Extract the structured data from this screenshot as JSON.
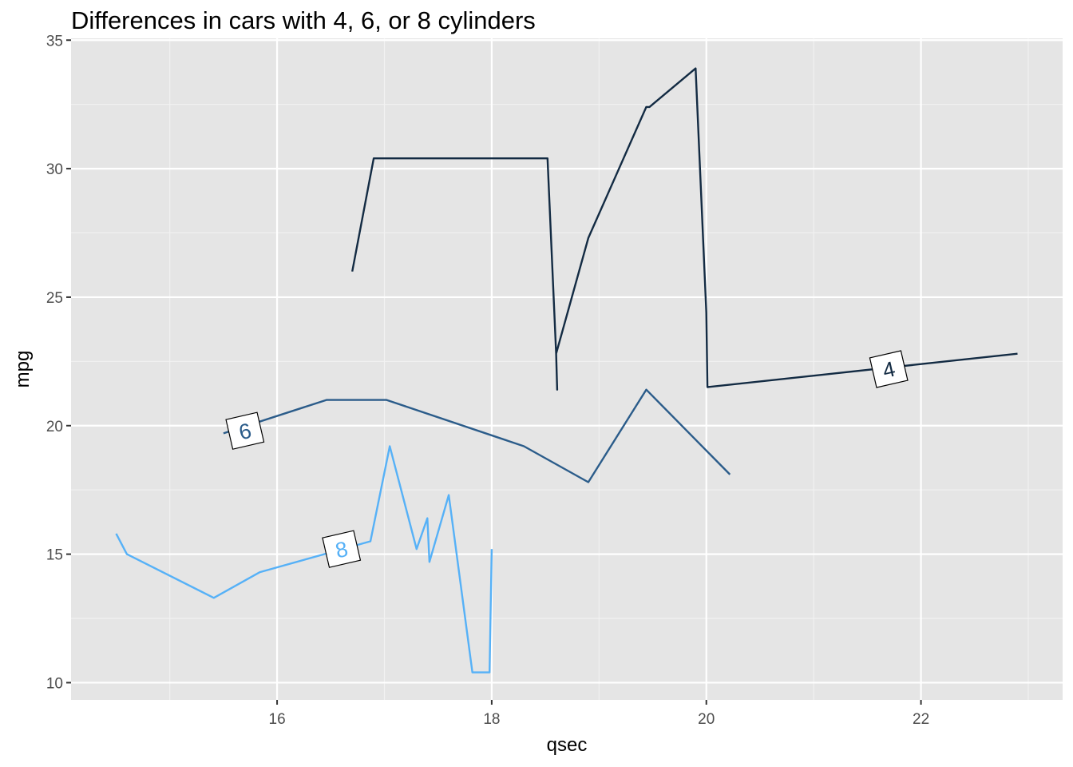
{
  "chart_data": {
    "type": "line",
    "title": "Differences in cars with 4, 6, or 8 cylinders",
    "xlabel": "qsec",
    "ylabel": "mpg",
    "xlim": [
      14.08,
      23.32
    ],
    "ylim": [
      9.33,
      35.07
    ],
    "x_ticks": [
      16,
      18,
      20,
      22
    ],
    "x_tick_labels": [
      "16",
      "18",
      "20",
      "22"
    ],
    "y_ticks": [
      10,
      15,
      20,
      25,
      30,
      35
    ],
    "y_tick_labels": [
      "10",
      "15",
      "20",
      "25",
      "30",
      "35"
    ],
    "grid": true,
    "legend": "none (direct labels on lines)",
    "background": "#e5e5e5",
    "series": [
      {
        "name": "4",
        "color": "#132b43",
        "label_at": [
          21.7,
          22.2
        ],
        "points": [
          [
            16.7,
            26.0
          ],
          [
            16.9,
            30.4
          ],
          [
            18.52,
            30.4
          ],
          [
            18.52,
            30.4
          ],
          [
            18.6,
            22.8
          ],
          [
            18.61,
            21.4
          ],
          [
            18.6,
            22.8
          ],
          [
            18.9,
            27.3
          ],
          [
            19.44,
            32.4
          ],
          [
            19.47,
            32.4
          ],
          [
            19.9,
            33.9
          ],
          [
            20.0,
            24.4
          ],
          [
            20.01,
            21.5
          ],
          [
            22.9,
            22.8
          ]
        ]
      },
      {
        "name": "6",
        "color": "#2b5c8a",
        "label_at": [
          15.7,
          19.8
        ],
        "points": [
          [
            15.5,
            19.7
          ],
          [
            16.46,
            21.0
          ],
          [
            17.02,
            21.0
          ],
          [
            18.3,
            19.2
          ],
          [
            18.9,
            17.8
          ],
          [
            19.44,
            21.4
          ],
          [
            20.22,
            18.1
          ]
        ]
      },
      {
        "name": "8",
        "color": "#56b1f7",
        "label_at": [
          16.6,
          15.2
        ],
        "points": [
          [
            14.5,
            15.8
          ],
          [
            14.6,
            15.0
          ],
          [
            15.41,
            13.3
          ],
          [
            15.84,
            14.3
          ],
          [
            16.87,
            15.5
          ],
          [
            17.05,
            19.2
          ],
          [
            17.3,
            15.2
          ],
          [
            17.4,
            16.4
          ],
          [
            17.42,
            14.7
          ],
          [
            17.6,
            17.3
          ],
          [
            17.82,
            10.4
          ],
          [
            17.98,
            10.4
          ],
          [
            18.0,
            15.2
          ]
        ]
      }
    ]
  }
}
